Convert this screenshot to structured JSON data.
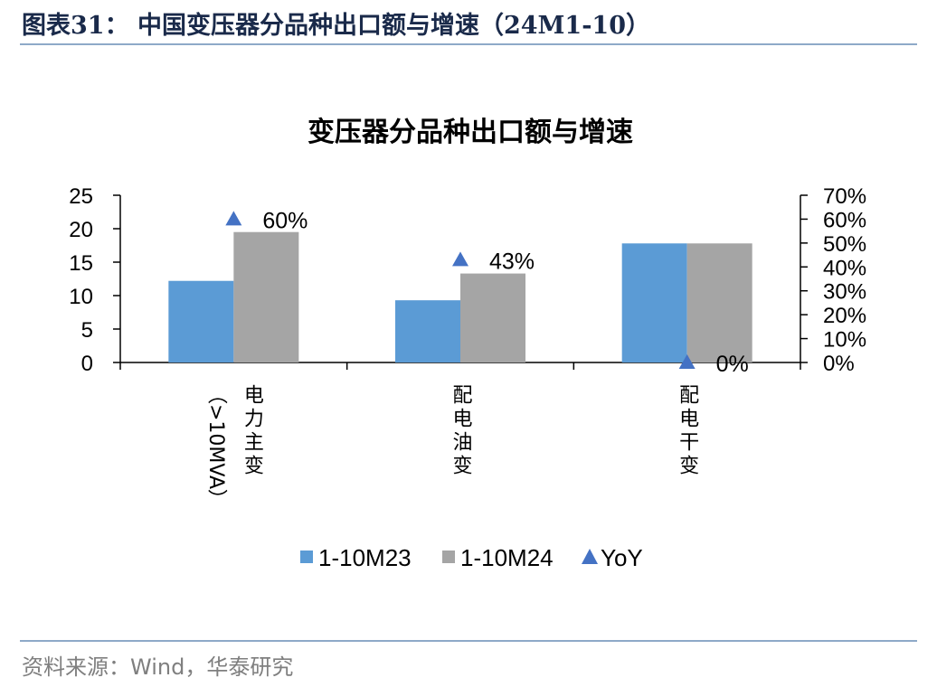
{
  "header": {
    "figure_title": "图表31：  中国变压器分品种出口额与增速（24M1-10）"
  },
  "footer": {
    "source": "资料来源：Wind，华泰研究"
  },
  "colors": {
    "series1": "#5b9bd5",
    "series2": "#a5a5a5",
    "yoy": "#4472c4",
    "rule": "#8ea9c8"
  },
  "chart_data": {
    "type": "bar",
    "title": "变压器分品种出口额与增速",
    "categories": [
      "电力主变（>10MVA）",
      "配电油变",
      "配电干变"
    ],
    "category_lines": [
      [
        "电力主变",
        "（>10MVA）"
      ],
      [
        "配电油变"
      ],
      [
        "配电干变"
      ]
    ],
    "series": [
      {
        "name": "1-10M23",
        "type": "bar",
        "axis": "left",
        "values": [
          12.2,
          9.3,
          17.8
        ]
      },
      {
        "name": "1-10M24",
        "type": "bar",
        "axis": "left",
        "values": [
          19.5,
          13.3,
          17.8
        ]
      },
      {
        "name": "YoY",
        "type": "marker",
        "axis": "right",
        "values": [
          0.6,
          0.43,
          0.0
        ],
        "labels": [
          "60%",
          "43%",
          "0%"
        ]
      }
    ],
    "y_left": {
      "min": 0,
      "max": 25,
      "ticks": [
        0,
        5,
        10,
        15,
        20,
        25
      ]
    },
    "y_right": {
      "min": 0,
      "max": 0.7,
      "ticks": [
        0,
        0.1,
        0.2,
        0.3,
        0.4,
        0.5,
        0.6,
        0.7
      ],
      "tick_labels": [
        "0%",
        "10%",
        "20%",
        "30%",
        "40%",
        "50%",
        "60%",
        "70%"
      ]
    },
    "legend_position": "bottom",
    "grid": false
  }
}
